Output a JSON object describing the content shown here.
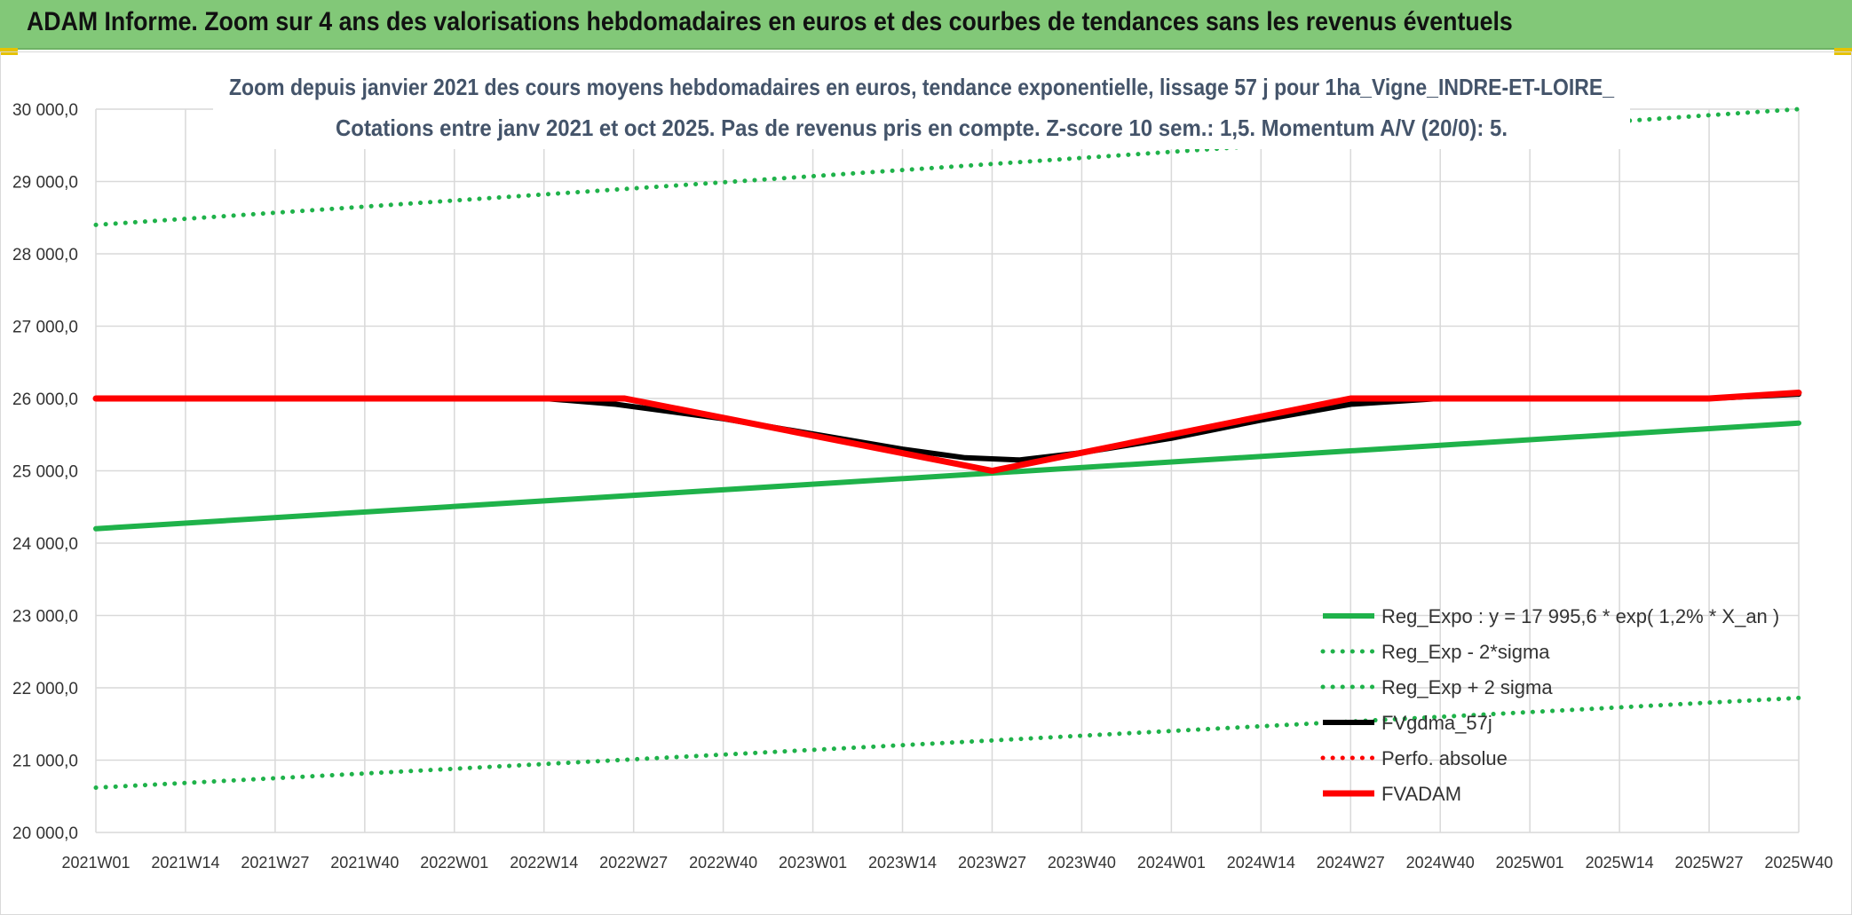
{
  "banner": {
    "title": "ADAM Informe. Zoom sur 4 ans des valorisations hebdomadaires en euros et des courbes de tendances sans les revenus éventuels"
  },
  "colors": {
    "banner_bg": "#82c878",
    "grid": "#d9d9d9",
    "reg": "#1fb24a",
    "fvgdma": "#000000",
    "fvadam": "#ff0000",
    "title_text": "#44546a"
  },
  "chart_data": {
    "type": "line",
    "title_line1": "Zoom depuis janvier 2021 des cours moyens hebdomadaires en euros, tendance exponentielle, lissage 57 j pour 1ha_Vigne_INDRE-ET-LOIRE_",
    "title_line2": "Cotations entre janv 2021 et oct 2025. Pas de revenus pris en compte. Z-score 10 sem.: 1,5. Momentum A/V (20/0): 5.",
    "xlabel": "",
    "ylabel": "",
    "ylim": [
      20000,
      30000
    ],
    "y_ticks": [
      20000,
      21000,
      22000,
      23000,
      24000,
      25000,
      26000,
      27000,
      28000,
      29000,
      30000
    ],
    "y_tick_labels": [
      "20 000,0",
      "21 000,0",
      "22 000,0",
      "23 000,0",
      "24 000,0",
      "25 000,0",
      "26 000,0",
      "27 000,0",
      "28 000,0",
      "29 000,0",
      "30 000,0"
    ],
    "x_categories": [
      "2021W01",
      "2021W14",
      "2021W27",
      "2021W40",
      "2022W01",
      "2022W14",
      "2022W27",
      "2022W40",
      "2023W01",
      "2023W14",
      "2023W27",
      "2023W40",
      "2024W01",
      "2024W14",
      "2024W27",
      "2024W40",
      "2025W01",
      "2025W14",
      "2025W27",
      "2025W40"
    ],
    "grid": true,
    "legend_position": "bottom-right",
    "series": [
      {
        "name": "Reg_Expo : y = 17 995,6 * exp( 1,2% *  X_an )",
        "style": "solid",
        "color": "#1fb24a",
        "x": [
          0,
          19
        ],
        "values": [
          24200,
          25660
        ]
      },
      {
        "name": "Reg_Exp - 2*sigma",
        "style": "dotted",
        "color": "#1fb24a",
        "x": [
          0,
          19
        ],
        "values": [
          20620,
          21860
        ]
      },
      {
        "name": "Reg_Exp + 2 sigma",
        "style": "dotted",
        "color": "#1fb24a",
        "x": [
          0,
          19
        ],
        "values": [
          28400,
          30000
        ]
      },
      {
        "name": "FVgdma_57j",
        "style": "solid",
        "color": "#000000",
        "x": [
          0,
          5,
          5.8,
          7,
          9,
          9.7,
          10.3,
          11,
          12,
          13,
          14,
          15,
          18,
          19
        ],
        "values": [
          26000,
          26000,
          25920,
          25720,
          25300,
          25180,
          25150,
          25250,
          25450,
          25700,
          25920,
          26000,
          26000,
          26060
        ]
      },
      {
        "name": "Perfo. absolue",
        "style": "dotted",
        "color": "#ff0000",
        "x": [],
        "values": []
      },
      {
        "name": "FVADAM",
        "style": "solid",
        "color": "#ff0000",
        "x": [
          0,
          5.9,
          10,
          14,
          18,
          19
        ],
        "values": [
          26000,
          26000,
          25000,
          26000,
          26000,
          26080
        ]
      }
    ]
  }
}
